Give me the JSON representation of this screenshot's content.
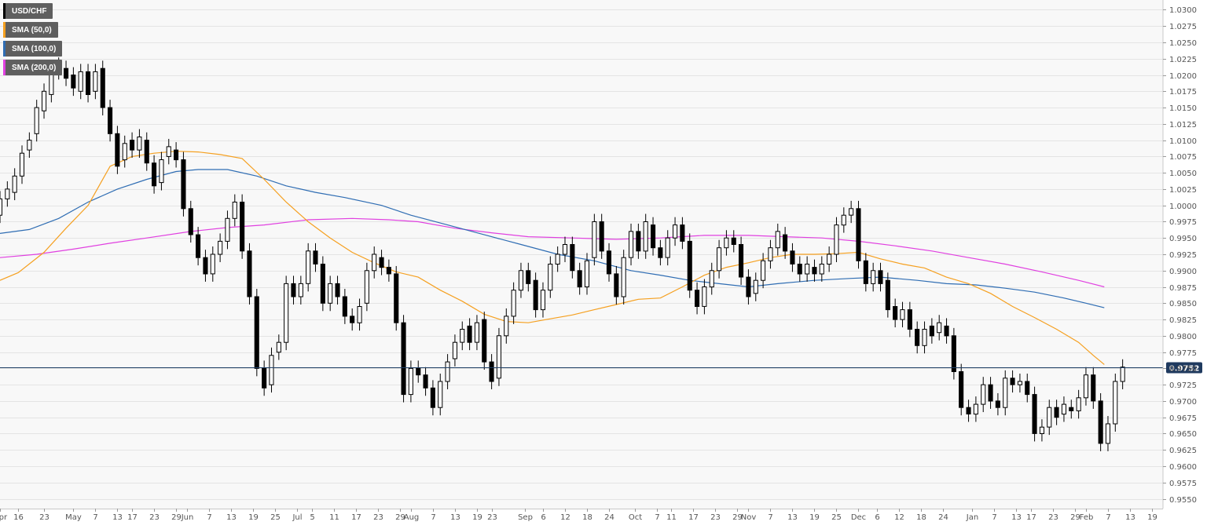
{
  "chart_data": {
    "type": "candlestick",
    "instrument": "USD/CHF",
    "timeframe": "daily",
    "y_axis": {
      "position": "right",
      "range": [
        0.9535,
        1.0315
      ],
      "tick_step": 0.0025,
      "tick_labels": [
        "1.0300",
        "1.0275",
        "1.0250",
        "1.0225",
        "1.0200",
        "1.0175",
        "1.0150",
        "1.0125",
        "1.0100",
        "1.0075",
        "1.0050",
        "1.0025",
        "1.0000",
        "0.9975",
        "0.9950",
        "0.9925",
        "0.9900",
        "0.9875",
        "0.9850",
        "0.9825",
        "0.9800",
        "0.9775",
        "0.9750",
        "0.9725",
        "0.9700",
        "0.9675",
        "0.9650",
        "0.9625",
        "0.9600",
        "0.9575",
        "0.9550"
      ]
    },
    "x_axis": {
      "ticks": [
        {
          "label": "Apr",
          "day": 0
        },
        {
          "label": "16",
          "day": 5
        },
        {
          "label": "23",
          "day": 12
        },
        {
          "label": "May",
          "day": 20
        },
        {
          "label": "7",
          "day": 26
        },
        {
          "label": "13",
          "day": 32
        },
        {
          "label": "17",
          "day": 36
        },
        {
          "label": "23",
          "day": 42
        },
        {
          "label": "29",
          "day": 48
        },
        {
          "label": "Jun",
          "day": 51
        },
        {
          "label": "7",
          "day": 57
        },
        {
          "label": "13",
          "day": 63
        },
        {
          "label": "19",
          "day": 69
        },
        {
          "label": "25",
          "day": 75
        },
        {
          "label": "Jul",
          "day": 81
        },
        {
          "label": "5",
          "day": 85
        },
        {
          "label": "11",
          "day": 91
        },
        {
          "label": "17",
          "day": 97
        },
        {
          "label": "23",
          "day": 103
        },
        {
          "label": "29",
          "day": 109
        },
        {
          "label": "Aug",
          "day": 112
        },
        {
          "label": "7",
          "day": 118
        },
        {
          "label": "13",
          "day": 124
        },
        {
          "label": "19",
          "day": 130
        },
        {
          "label": "23",
          "day": 134
        },
        {
          "label": "Sep",
          "day": 143
        },
        {
          "label": "6",
          "day": 148
        },
        {
          "label": "12",
          "day": 154
        },
        {
          "label": "18",
          "day": 160
        },
        {
          "label": "24",
          "day": 166
        },
        {
          "label": "Oct",
          "day": 173
        },
        {
          "label": "7",
          "day": 179
        },
        {
          "label": "11",
          "day": 183
        },
        {
          "label": "17",
          "day": 189
        },
        {
          "label": "23",
          "day": 195
        },
        {
          "label": "29",
          "day": 201
        },
        {
          "label": "Nov",
          "day": 204
        },
        {
          "label": "7",
          "day": 210
        },
        {
          "label": "13",
          "day": 216
        },
        {
          "label": "19",
          "day": 222
        },
        {
          "label": "25",
          "day": 228
        },
        {
          "label": "Dec",
          "day": 234
        },
        {
          "label": "6",
          "day": 239
        },
        {
          "label": "12",
          "day": 245
        },
        {
          "label": "18",
          "day": 251
        },
        {
          "label": "24",
          "day": 257
        },
        {
          "label": "Jan",
          "day": 265
        },
        {
          "label": "7",
          "day": 271
        },
        {
          "label": "13",
          "day": 277
        },
        {
          "label": "17",
          "day": 281
        },
        {
          "label": "23",
          "day": 287
        },
        {
          "label": "29",
          "day": 293
        },
        {
          "label": "Feb",
          "day": 296
        },
        {
          "label": "7",
          "day": 302
        },
        {
          "label": "13",
          "day": 308
        },
        {
          "label": "19",
          "day": 314
        }
      ],
      "day_range": [
        0,
        317
      ]
    },
    "current_price": {
      "label": "0.9752",
      "value": 0.9752
    },
    "legend": [
      {
        "name": "USD/CHF",
        "color": "#000000"
      },
      {
        "name": "SMA (50,0)",
        "color": "#f5a020"
      },
      {
        "name": "SMA (100,0)",
        "color": "#2f6db3"
      },
      {
        "name": "SMA (200,0)",
        "color": "#e040e0"
      }
    ],
    "sma50": [
      [
        0,
        0.9885
      ],
      [
        5,
        0.9897
      ],
      [
        12,
        0.9928
      ],
      [
        18,
        0.9965
      ],
      [
        24,
        1.0
      ],
      [
        30,
        1.006
      ],
      [
        36,
        1.0075
      ],
      [
        42,
        1.008
      ],
      [
        48,
        1.0083
      ],
      [
        54,
        1.0082
      ],
      [
        60,
        1.0078
      ],
      [
        66,
        1.0072
      ],
      [
        72,
        1.004
      ],
      [
        78,
        1.0005
      ],
      [
        84,
        0.9975
      ],
      [
        90,
        0.995
      ],
      [
        96,
        0.9928
      ],
      [
        102,
        0.9912
      ],
      [
        108,
        0.9898
      ],
      [
        114,
        0.989
      ],
      [
        120,
        0.987
      ],
      [
        126,
        0.9853
      ],
      [
        132,
        0.9833
      ],
      [
        138,
        0.9822
      ],
      [
        144,
        0.982
      ],
      [
        150,
        0.9826
      ],
      [
        156,
        0.9832
      ],
      [
        162,
        0.984
      ],
      [
        168,
        0.9848
      ],
      [
        174,
        0.9856
      ],
      [
        180,
        0.9858
      ],
      [
        186,
        0.9875
      ],
      [
        192,
        0.9893
      ],
      [
        198,
        0.9905
      ],
      [
        204,
        0.9912
      ],
      [
        210,
        0.992
      ],
      [
        216,
        0.9925
      ],
      [
        222,
        0.9925
      ],
      [
        228,
        0.9926
      ],
      [
        234,
        0.9928
      ],
      [
        240,
        0.9918
      ],
      [
        246,
        0.991
      ],
      [
        252,
        0.9904
      ],
      [
        258,
        0.989
      ],
      [
        264,
        0.988
      ],
      [
        270,
        0.9865
      ],
      [
        276,
        0.9845
      ],
      [
        282,
        0.9828
      ],
      [
        288,
        0.981
      ],
      [
        294,
        0.979
      ],
      [
        298,
        0.977
      ],
      [
        301,
        0.9756
      ]
    ],
    "sma100": [
      [
        0,
        0.9957
      ],
      [
        8,
        0.9963
      ],
      [
        16,
        0.998
      ],
      [
        24,
        1.0005
      ],
      [
        32,
        1.0025
      ],
      [
        40,
        1.004
      ],
      [
        48,
        1.0052
      ],
      [
        54,
        1.0055
      ],
      [
        62,
        1.0055
      ],
      [
        70,
        1.0045
      ],
      [
        78,
        1.003
      ],
      [
        86,
        1.002
      ],
      [
        94,
        1.0012
      ],
      [
        104,
        1.0
      ],
      [
        112,
        0.9985
      ],
      [
        122,
        0.997
      ],
      [
        132,
        0.9955
      ],
      [
        142,
        0.994
      ],
      [
        152,
        0.9925
      ],
      [
        162,
        0.9915
      ],
      [
        172,
        0.99
      ],
      [
        180,
        0.9893
      ],
      [
        188,
        0.9885
      ],
      [
        196,
        0.988
      ],
      [
        204,
        0.9875
      ],
      [
        212,
        0.988
      ],
      [
        222,
        0.9885
      ],
      [
        232,
        0.9888
      ],
      [
        240,
        0.989
      ],
      [
        250,
        0.9885
      ],
      [
        258,
        0.988
      ],
      [
        266,
        0.9878
      ],
      [
        274,
        0.9873
      ],
      [
        282,
        0.9867
      ],
      [
        290,
        0.9858
      ],
      [
        296,
        0.985
      ],
      [
        301,
        0.9843
      ]
    ],
    "sma200": [
      [
        0,
        0.992
      ],
      [
        10,
        0.9925
      ],
      [
        20,
        0.9933
      ],
      [
        30,
        0.9942
      ],
      [
        40,
        0.995
      ],
      [
        52,
        0.996
      ],
      [
        62,
        0.9966
      ],
      [
        72,
        0.997
      ],
      [
        84,
        0.9978
      ],
      [
        96,
        0.998
      ],
      [
        106,
        0.9978
      ],
      [
        114,
        0.9975
      ],
      [
        124,
        0.9965
      ],
      [
        134,
        0.9958
      ],
      [
        144,
        0.9952
      ],
      [
        156,
        0.995
      ],
      [
        168,
        0.9948
      ],
      [
        180,
        0.995
      ],
      [
        192,
        0.9954
      ],
      [
        204,
        0.9954
      ],
      [
        214,
        0.9952
      ],
      [
        224,
        0.995
      ],
      [
        234,
        0.9945
      ],
      [
        244,
        0.9938
      ],
      [
        254,
        0.993
      ],
      [
        264,
        0.992
      ],
      [
        274,
        0.991
      ],
      [
        284,
        0.9898
      ],
      [
        294,
        0.9885
      ],
      [
        301,
        0.9875
      ]
    ],
    "candles_approx": [
      [
        0,
        0.9985,
        1.001
      ],
      [
        2,
        1.001,
        1.0025
      ],
      [
        4,
        1.002,
        1.0045
      ],
      [
        6,
        1.0045,
        1.008
      ],
      [
        8,
        1.0085,
        1.01
      ],
      [
        10,
        1.011,
        1.015
      ],
      [
        12,
        1.0145,
        1.0175
      ],
      [
        14,
        1.017,
        1.021
      ],
      [
        16,
        1.0205,
        1.0215
      ],
      [
        18,
        1.021,
        1.0195
      ],
      [
        20,
        1.02,
        1.018
      ],
      [
        22,
        1.0175,
        1.0205
      ],
      [
        24,
        1.0205,
        1.017
      ],
      [
        26,
        1.0175,
        1.0205
      ],
      [
        28,
        1.021,
        1.015
      ],
      [
        30,
        1.015,
        1.011
      ],
      [
        32,
        1.011,
        1.006
      ],
      [
        34,
        1.007,
        1.0095
      ],
      [
        36,
        1.01,
        1.0085
      ],
      [
        38,
        1.0085,
        1.0105
      ],
      [
        40,
        1.01,
        1.0065
      ],
      [
        42,
        1.0065,
        1.003
      ],
      [
        44,
        1.0035,
        1.007
      ],
      [
        46,
        1.0075,
        1.009
      ],
      [
        48,
        1.0085,
        1.007
      ],
      [
        50,
        1.007,
        0.9995
      ],
      [
        52,
        0.9995,
        0.9955
      ],
      [
        54,
        0.9955,
        0.992
      ],
      [
        56,
        0.992,
        0.9895
      ],
      [
        58,
        0.9895,
        0.9925
      ],
      [
        60,
        0.9925,
        0.9945
      ],
      [
        62,
        0.9945,
        0.998
      ],
      [
        64,
        0.998,
        1.0005
      ],
      [
        66,
        1.0005,
        0.993
      ],
      [
        68,
        0.993,
        0.986
      ],
      [
        70,
        0.986,
        0.975
      ],
      [
        72,
        0.975,
        0.972
      ],
      [
        74,
        0.9725,
        0.977
      ],
      [
        76,
        0.9775,
        0.979
      ],
      [
        78,
        0.979,
        0.988
      ],
      [
        80,
        0.988,
        0.986
      ],
      [
        82,
        0.986,
        0.988
      ],
      [
        84,
        0.988,
        0.993
      ],
      [
        86,
        0.993,
        0.991
      ],
      [
        88,
        0.991,
        0.985
      ],
      [
        90,
        0.985,
        0.988
      ],
      [
        92,
        0.988,
        0.986
      ],
      [
        94,
        0.986,
        0.983
      ],
      [
        96,
        0.983,
        0.982
      ],
      [
        98,
        0.982,
        0.9845
      ],
      [
        100,
        0.985,
        0.99
      ],
      [
        102,
        0.99,
        0.9925
      ],
      [
        104,
        0.992,
        0.9905
      ],
      [
        106,
        0.9905,
        0.9895
      ],
      [
        108,
        0.9895,
        0.982
      ],
      [
        110,
        0.982,
        0.971
      ],
      [
        112,
        0.971,
        0.975
      ],
      [
        114,
        0.975,
        0.974
      ],
      [
        116,
        0.974,
        0.972
      ],
      [
        118,
        0.972,
        0.969
      ],
      [
        120,
        0.969,
        0.973
      ],
      [
        122,
        0.973,
        0.976
      ],
      [
        124,
        0.9765,
        0.979
      ],
      [
        126,
        0.979,
        0.981
      ],
      [
        128,
        0.9815,
        0.979
      ],
      [
        130,
        0.979,
        0.982
      ],
      [
        132,
        0.9825,
        0.976
      ],
      [
        134,
        0.976,
        0.973
      ],
      [
        136,
        0.9735,
        0.98
      ],
      [
        138,
        0.98,
        0.983
      ],
      [
        140,
        0.983,
        0.987
      ],
      [
        142,
        0.987,
        0.99
      ],
      [
        144,
        0.99,
        0.988
      ],
      [
        146,
        0.9885,
        0.984
      ],
      [
        148,
        0.984,
        0.987
      ],
      [
        150,
        0.987,
        0.991
      ],
      [
        152,
        0.991,
        0.9925
      ],
      [
        154,
        0.9925,
        0.994
      ],
      [
        156,
        0.994,
        0.99
      ],
      [
        158,
        0.99,
        0.9875
      ],
      [
        160,
        0.9875,
        0.9915
      ],
      [
        162,
        0.992,
        0.9975
      ],
      [
        164,
        0.9975,
        0.993
      ],
      [
        166,
        0.993,
        0.9895
      ],
      [
        168,
        0.9895,
        0.986
      ],
      [
        170,
        0.986,
        0.992
      ],
      [
        172,
        0.992,
        0.996
      ],
      [
        174,
        0.996,
        0.993
      ],
      [
        176,
        0.993,
        0.9975
      ],
      [
        178,
        0.997,
        0.9935
      ],
      [
        180,
        0.9935,
        0.992
      ],
      [
        182,
        0.992,
        0.995
      ],
      [
        184,
        0.995,
        0.997
      ],
      [
        186,
        0.997,
        0.9945
      ],
      [
        188,
        0.9945,
        0.987
      ],
      [
        190,
        0.987,
        0.9845
      ],
      [
        192,
        0.9845,
        0.9875
      ],
      [
        194,
        0.9875,
        0.99
      ],
      [
        196,
        0.99,
        0.9935
      ],
      [
        198,
        0.9935,
        0.995
      ],
      [
        200,
        0.995,
        0.994
      ],
      [
        202,
        0.994,
        0.989
      ],
      [
        204,
        0.989,
        0.986
      ],
      [
        206,
        0.9865,
        0.9885
      ],
      [
        208,
        0.9885,
        0.9915
      ],
      [
        210,
        0.9915,
        0.9935
      ],
      [
        212,
        0.9935,
        0.996
      ],
      [
        214,
        0.9955,
        0.993
      ],
      [
        216,
        0.993,
        0.991
      ],
      [
        218,
        0.991,
        0.9895
      ],
      [
        220,
        0.9895,
        0.991
      ],
      [
        222,
        0.9905,
        0.9895
      ],
      [
        224,
        0.9895,
        0.991
      ],
      [
        226,
        0.991,
        0.9925
      ],
      [
        228,
        0.9925,
        0.997
      ],
      [
        230,
        0.997,
        0.9985
      ],
      [
        232,
        0.9985,
        0.9995
      ],
      [
        234,
        0.9995,
        0.9915
      ],
      [
        236,
        0.9915,
        0.988
      ],
      [
        238,
        0.988,
        0.99
      ],
      [
        240,
        0.99,
        0.988
      ],
      [
        242,
        0.9885,
        0.984
      ],
      [
        244,
        0.9845,
        0.9825
      ],
      [
        246,
        0.9825,
        0.984
      ],
      [
        248,
        0.984,
        0.981
      ],
      [
        250,
        0.981,
        0.9785
      ],
      [
        252,
        0.9785,
        0.981
      ],
      [
        254,
        0.9815,
        0.98
      ],
      [
        256,
        0.9805,
        0.982
      ],
      [
        258,
        0.9815,
        0.98
      ],
      [
        260,
        0.98,
        0.9745
      ],
      [
        262,
        0.9745,
        0.969
      ],
      [
        264,
        0.969,
        0.968
      ],
      [
        266,
        0.968,
        0.9695
      ],
      [
        268,
        0.9695,
        0.9725
      ],
      [
        270,
        0.9725,
        0.97
      ],
      [
        272,
        0.97,
        0.969
      ],
      [
        274,
        0.969,
        0.9735
      ],
      [
        276,
        0.9735,
        0.9725
      ],
      [
        278,
        0.9725,
        0.973
      ],
      [
        280,
        0.973,
        0.971
      ],
      [
        282,
        0.971,
        0.965
      ],
      [
        284,
        0.965,
        0.966
      ],
      [
        286,
        0.966,
        0.969
      ],
      [
        288,
        0.969,
        0.9675
      ],
      [
        290,
        0.968,
        0.9695
      ],
      [
        292,
        0.969,
        0.9685
      ],
      [
        294,
        0.9685,
        0.9705
      ],
      [
        296,
        0.9705,
        0.974
      ],
      [
        298,
        0.974,
        0.97
      ],
      [
        300,
        0.97,
        0.9635
      ],
      [
        302,
        0.9635,
        0.9665
      ],
      [
        304,
        0.9665,
        0.973
      ],
      [
        306,
        0.973,
        0.9752
      ]
    ]
  }
}
